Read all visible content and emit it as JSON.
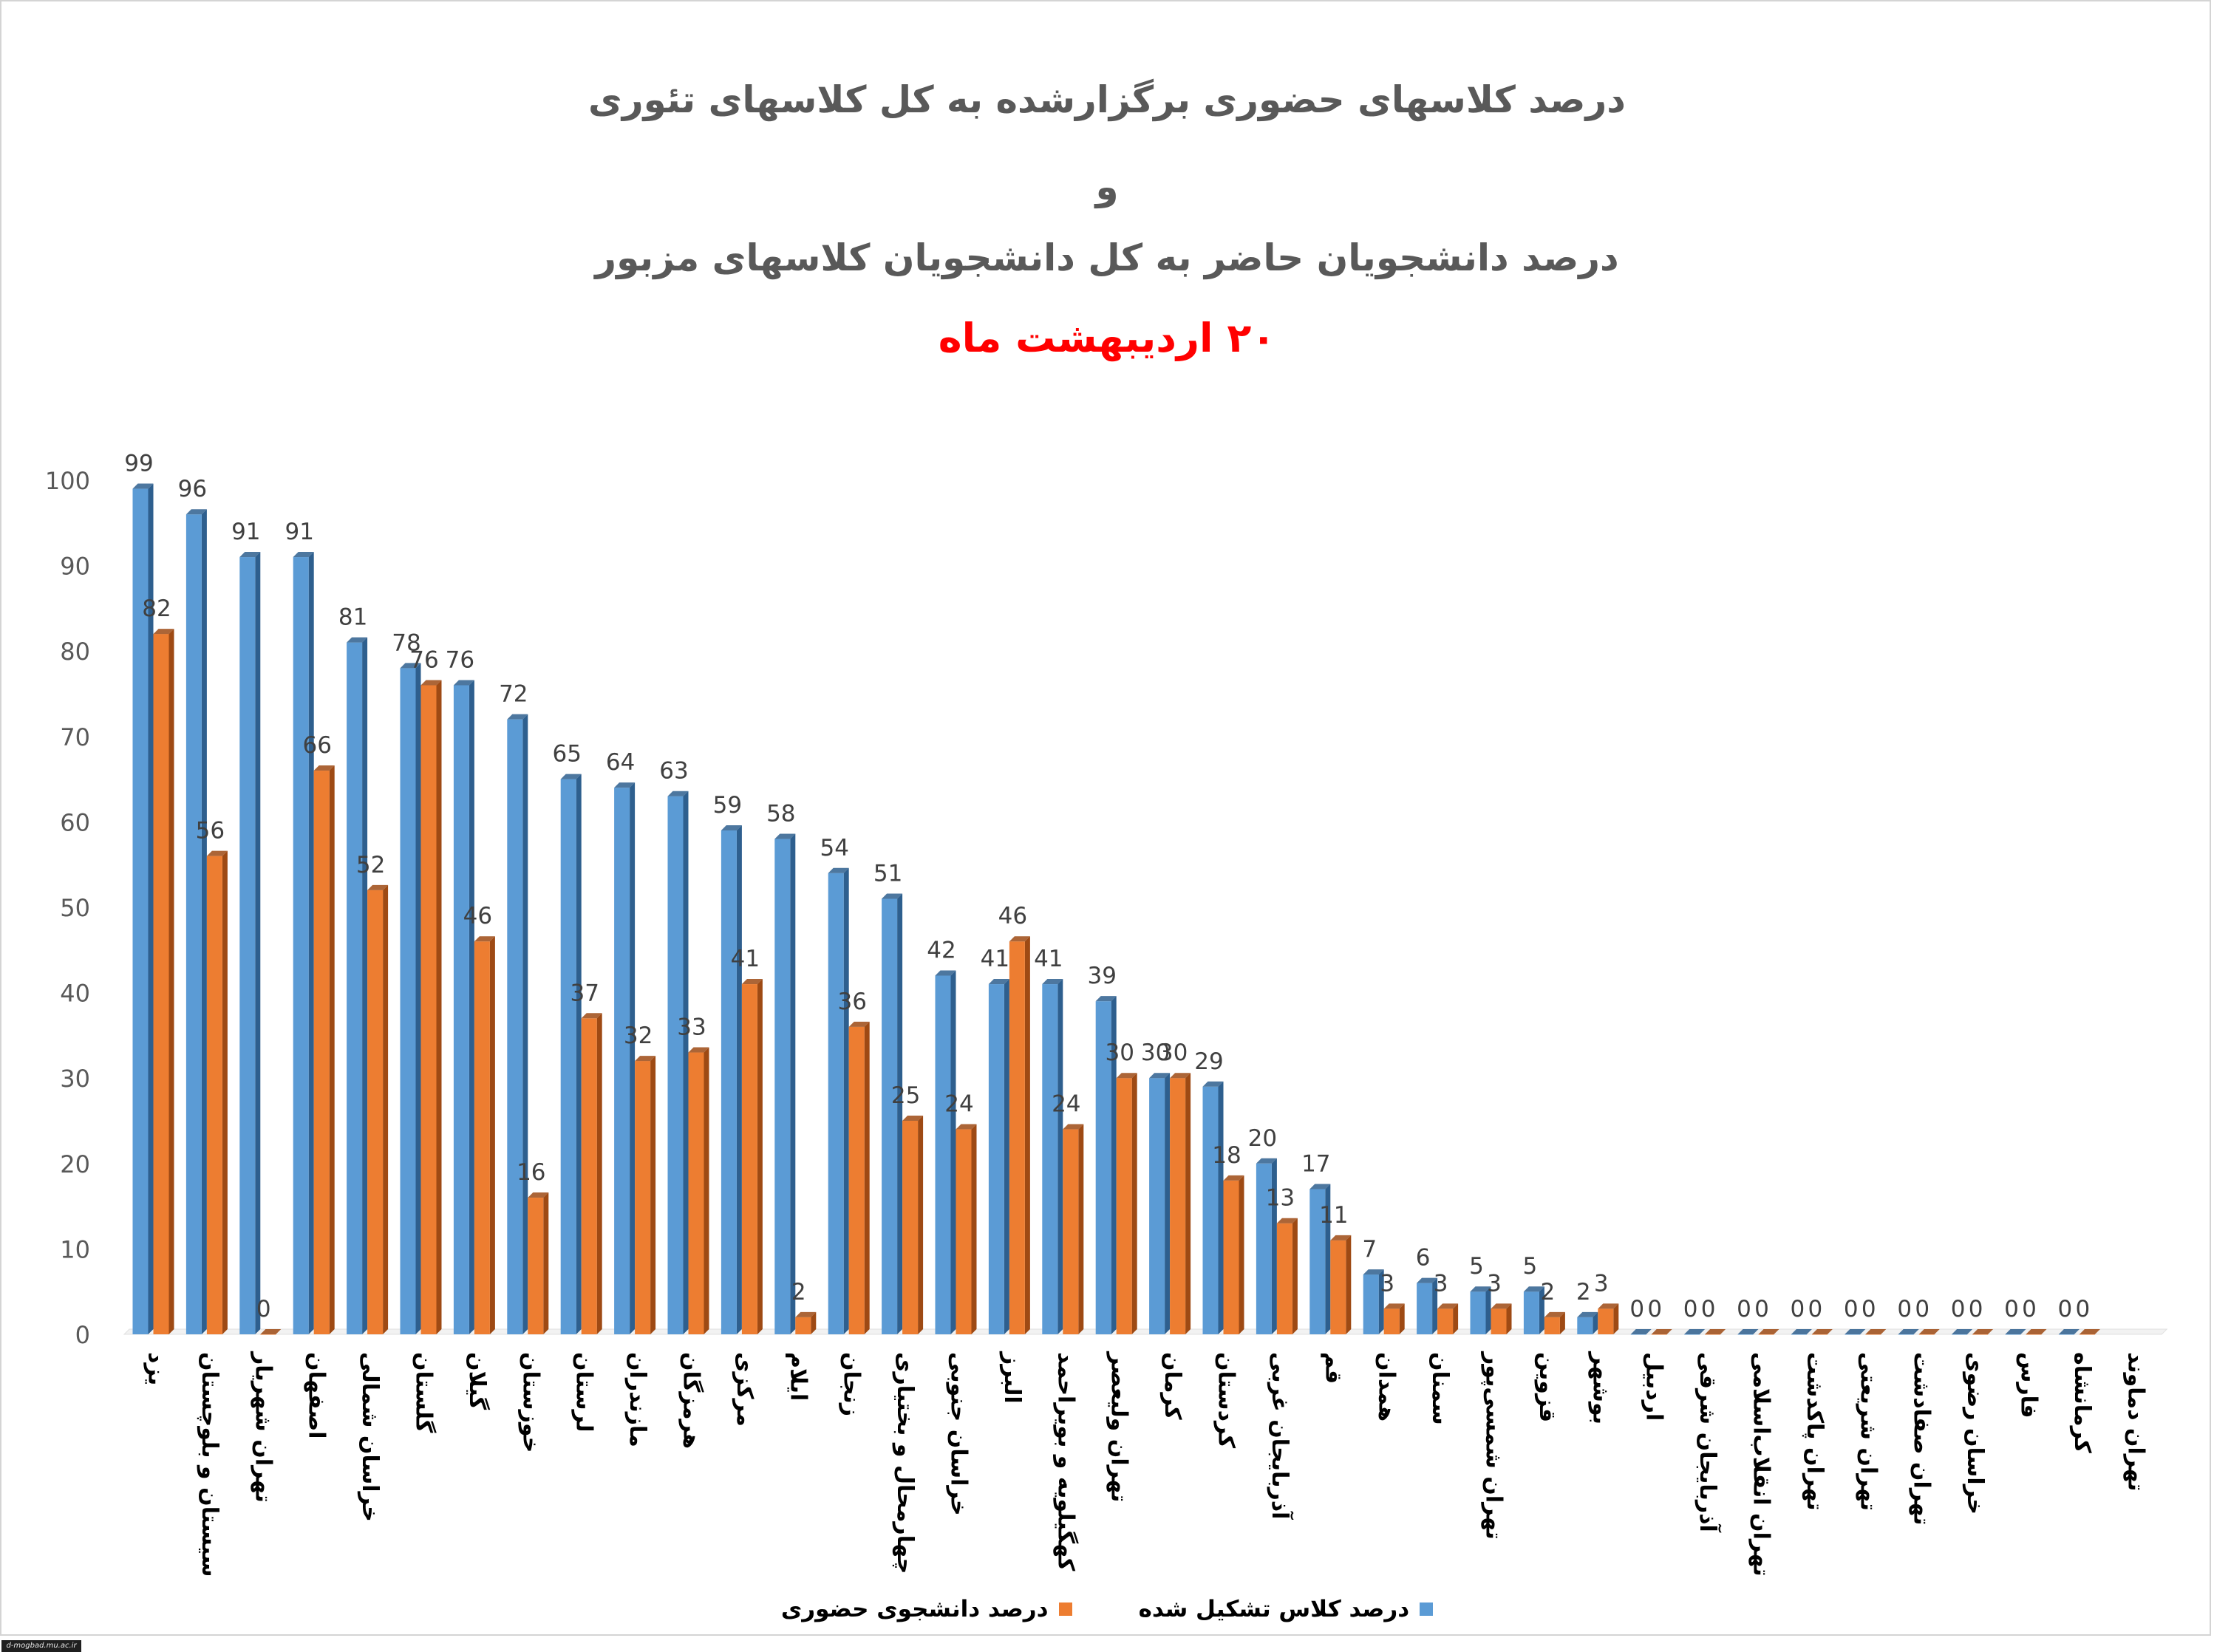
{
  "title": {
    "line1": "درصد کلاسهای حضوری برگزارشده به کل کلاسهای تئوری",
    "line2": "و",
    "line3": "درصد دانشجویان حاضر به کل دانشجویان کلاسهای مزبور",
    "line4": "۲۰ اردیبهشت ماه"
  },
  "watermark": "d-mogbad.mu.ac.ir",
  "colors": {
    "series1": "#5B9BD5",
    "series1_dark": "#2E5F8E",
    "series2": "#ED7D31",
    "series2_dark": "#9E4A14"
  },
  "chart_data": {
    "type": "bar",
    "ylim": [
      0,
      100
    ],
    "yticks": [
      0,
      10,
      20,
      30,
      40,
      50,
      60,
      70,
      80,
      90,
      100
    ],
    "grid": false,
    "legend_position": "bottom",
    "categories": [
      "یزد",
      "سیستان و بلوچستان",
      "تهران شهریار",
      "اصفهان",
      "خراسان شمالی",
      "گلستان",
      "گیلان",
      "خوزستان",
      "لرستان",
      "مازندران",
      "هرمزگان",
      "مرکزی",
      "ایلام",
      "زنجان",
      "چهارمحال و بختیاری",
      "خراسان جنوبی",
      "البرز",
      "کهگیلویه و بویراحمد",
      "تهران ولیعصر",
      "کرمان",
      "کردستان",
      "آذربایجان غربی",
      "قم",
      "همدان",
      "سمنان",
      "تهران شمسی‌پور",
      "قزوین",
      "بوشهر",
      "اردبیل",
      "آذربایجان شرقی",
      "تهران انقلاب‌اسلامی",
      "تهران پاکدشت",
      "تهران شریعتی",
      "تهران صفادشت",
      "خراسان رضوی",
      "فارس",
      "کرمانشاه",
      "تهران دماوند"
    ],
    "series": [
      {
        "name": "درصد کلاس تشکیل شده",
        "values": [
          99,
          96,
          91,
          91,
          81,
          78,
          76,
          72,
          65,
          64,
          63,
          59,
          58,
          54,
          51,
          42,
          41,
          41,
          39,
          30,
          29,
          20,
          17,
          7,
          6,
          5,
          5,
          2,
          0,
          0,
          0,
          0,
          0,
          0,
          0,
          0,
          0,
          null
        ],
        "labels": [
          "99",
          "96",
          "91",
          "91",
          "81",
          "78",
          "76",
          "72",
          "65",
          "64",
          "63",
          "59",
          "58",
          "54",
          "51",
          "42",
          "41",
          "41",
          "39",
          "30",
          "29",
          "20",
          "17",
          "7",
          "6",
          "5",
          "5",
          "2",
          "0",
          "0",
          "0",
          "0",
          "0",
          "0",
          "0",
          "0",
          "0",
          ""
        ]
      },
      {
        "name": "درصد دانشجوی حضوری",
        "values": [
          82,
          56,
          0,
          66,
          52,
          76,
          46,
          16,
          37,
          32,
          33,
          41,
          2,
          36,
          25,
          24,
          46,
          24,
          30,
          30,
          18,
          13,
          11,
          3,
          3,
          3,
          2,
          3,
          0,
          0,
          0,
          0,
          0,
          0,
          0,
          0,
          0,
          null
        ],
        "labels": [
          "82",
          "56",
          "0",
          "66",
          "52",
          "76",
          "46",
          "16",
          "37",
          "32",
          "33",
          "41",
          "2",
          "36",
          "25",
          "24",
          "46",
          "24",
          "30",
          "30",
          "18",
          "13",
          "11",
          "3",
          "3",
          "3",
          "2",
          "3",
          "0",
          "0",
          "0",
          "0",
          "0",
          "0",
          "0",
          "0",
          "0",
          ""
        ]
      }
    ]
  }
}
